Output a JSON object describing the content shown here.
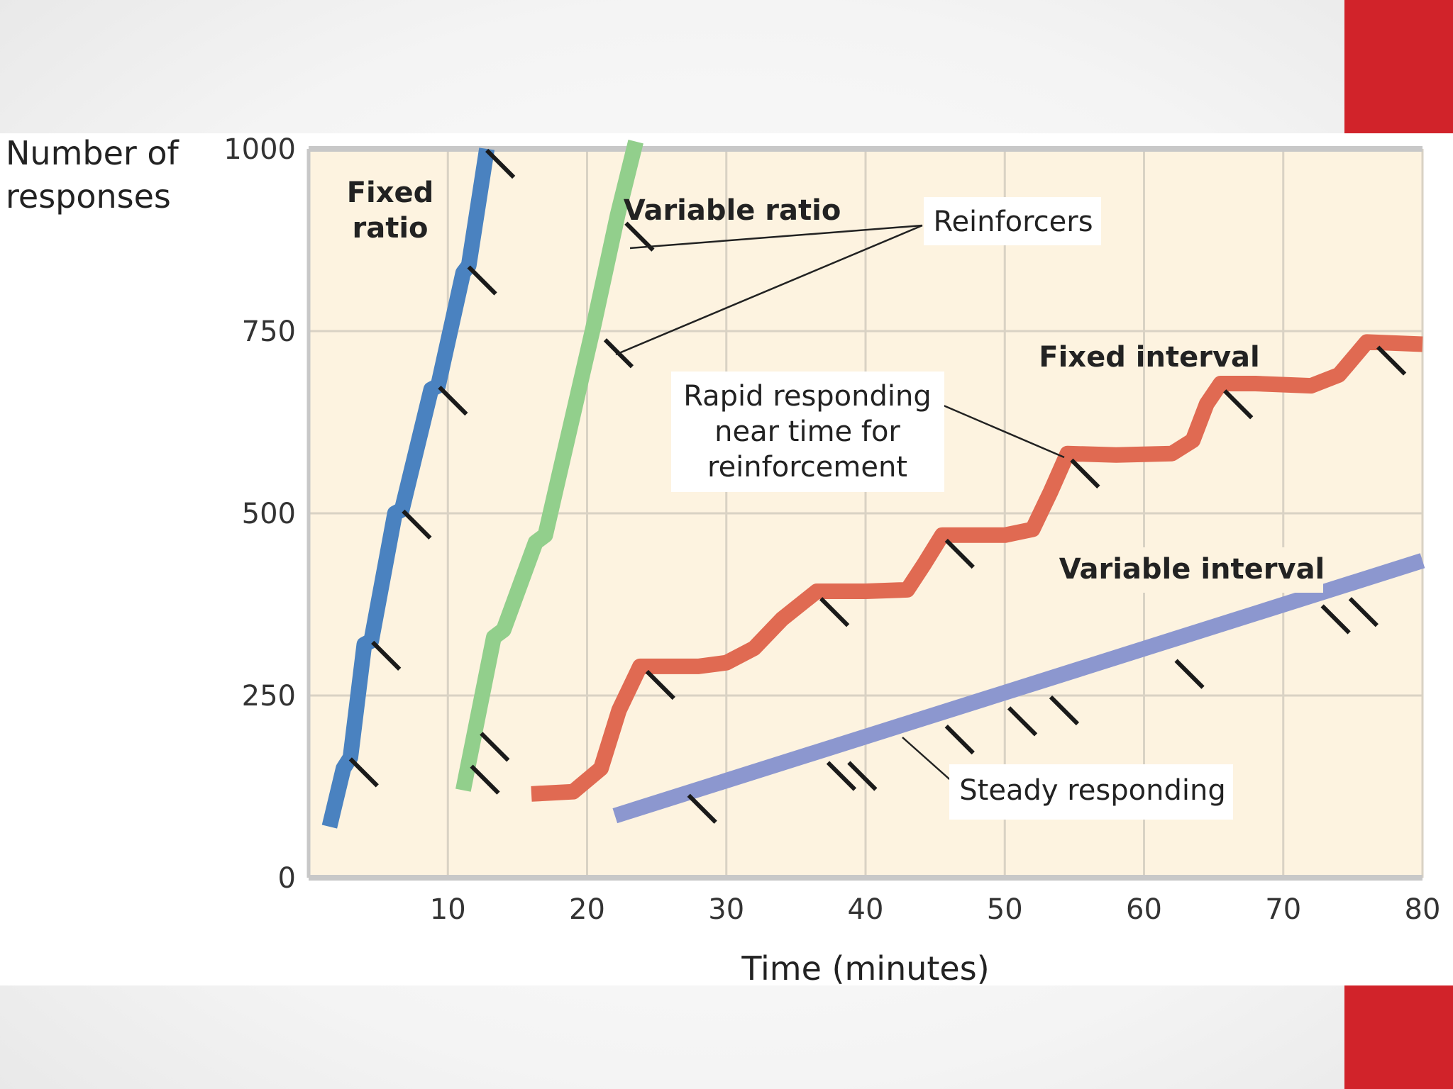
{
  "slide": {
    "accent_color": "#d1232a",
    "background_color": "#f4f4f4",
    "panel_color": "#ffffff"
  },
  "chart_data": {
    "type": "line",
    "title": "",
    "xlabel": "Time (minutes)",
    "ylabel_lines": [
      "Number of",
      "responses"
    ],
    "xlim": [
      0,
      80
    ],
    "ylim": [
      0,
      1000
    ],
    "x_ticks": [
      10,
      20,
      30,
      40,
      50,
      60,
      70,
      80
    ],
    "y_ticks": [
      0,
      250,
      500,
      750,
      1000
    ],
    "grid": true,
    "plot_background": "#fdf3e0",
    "grid_color": "#d9d2c4",
    "series": [
      {
        "name_lines": [
          "Fixed",
          "ratio"
        ],
        "color": "#4a82c0",
        "points": [
          [
            1.5,
            70
          ],
          [
            2.5,
            150
          ],
          [
            3,
            165
          ],
          [
            4,
            320
          ],
          [
            4.5,
            325
          ],
          [
            6.2,
            500
          ],
          [
            6.7,
            505
          ],
          [
            8.8,
            670
          ],
          [
            9.3,
            675
          ],
          [
            11.1,
            830
          ],
          [
            11.5,
            840
          ],
          [
            12.8,
            1000
          ]
        ],
        "reinforcers": [
          [
            3.2,
            165
          ],
          [
            4.8,
            325
          ],
          [
            7,
            505
          ],
          [
            9.6,
            675
          ],
          [
            11.7,
            840
          ],
          [
            13,
            1000
          ]
        ]
      },
      {
        "name_lines": [
          "Variable ratio"
        ],
        "color": "#92cf8c",
        "points": [
          [
            11.1,
            120
          ],
          [
            13.3,
            330
          ],
          [
            14,
            340
          ],
          [
            16.3,
            460
          ],
          [
            17,
            470
          ],
          [
            20.5,
            760
          ],
          [
            22.2,
            910
          ],
          [
            23.5,
            1010
          ]
        ],
        "reinforcers": [
          [
            11.9,
            155
          ],
          [
            12.6,
            200
          ],
          [
            21.5,
            740
          ],
          [
            23,
            900
          ]
        ]
      },
      {
        "name_lines": [
          "Fixed interval"
        ],
        "color": "#e06a52",
        "points": [
          [
            16,
            115
          ],
          [
            19,
            118
          ],
          [
            21,
            150
          ],
          [
            22.3,
            230
          ],
          [
            23.8,
            290
          ],
          [
            26,
            290
          ],
          [
            28,
            290
          ],
          [
            30,
            295
          ],
          [
            32,
            315
          ],
          [
            34,
            355
          ],
          [
            36.5,
            393
          ],
          [
            40,
            393
          ],
          [
            43,
            395
          ],
          [
            44.2,
            430
          ],
          [
            45.5,
            470
          ],
          [
            48,
            470
          ],
          [
            50,
            470
          ],
          [
            52,
            478
          ],
          [
            53.3,
            530
          ],
          [
            54.5,
            582
          ],
          [
            58,
            580
          ],
          [
            62,
            582
          ],
          [
            63.5,
            600
          ],
          [
            64.5,
            650
          ],
          [
            65.5,
            678
          ],
          [
            68,
            678
          ],
          [
            72,
            675
          ],
          [
            74,
            690
          ],
          [
            76,
            735
          ],
          [
            80,
            732
          ]
        ],
        "reinforcers": [
          [
            24.5,
            285
          ],
          [
            37,
            385
          ],
          [
            46,
            465
          ],
          [
            55,
            575
          ],
          [
            66,
            670
          ],
          [
            77,
            730
          ]
        ]
      },
      {
        "name_lines": [
          "Variable interval"
        ],
        "color": "#8c97cf",
        "points": [
          [
            22,
            85
          ],
          [
            80,
            435
          ]
        ],
        "reinforcers": [
          [
            27.5,
            115
          ],
          [
            37.5,
            160
          ],
          [
            39,
            160
          ],
          [
            46,
            210
          ],
          [
            50.5,
            235
          ],
          [
            53.5,
            250
          ],
          [
            62.5,
            300
          ],
          [
            73,
            375
          ],
          [
            75,
            385
          ]
        ]
      }
    ],
    "annotations": {
      "reinforcers": "Reinforcers",
      "rapid_responding_lines": [
        "Rapid responding",
        "near time for",
        "reinforcement"
      ],
      "steady_responding": "Steady responding"
    }
  }
}
